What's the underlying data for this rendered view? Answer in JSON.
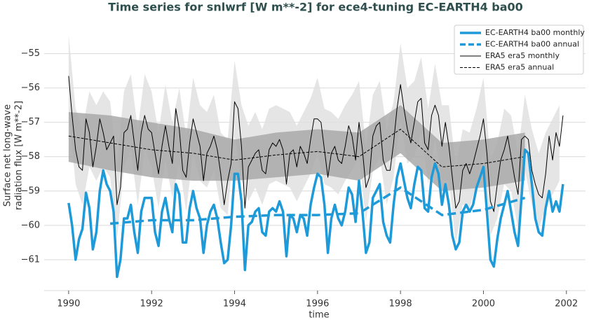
{
  "chart_data": {
    "type": "line",
    "title": "Time series for snlwrf [W m**-2] for ece4-tuning EC-EARTH4 ba00",
    "xlabel": "time",
    "ylabel": [
      "Surface net long-wave",
      "radiation flux [W m**-2]"
    ],
    "xlim": [
      1989.41,
      2002.46
    ],
    "ylim": [
      -61.9,
      -54.05
    ],
    "xticks": [
      1990,
      1992,
      1994,
      1996,
      1998,
      2000,
      2002
    ],
    "yticks": [
      {
        "value": -61,
        "label": "−61"
      },
      {
        "value": -60,
        "label": "−60"
      },
      {
        "value": -59,
        "label": "−59"
      },
      {
        "value": -58,
        "label": "−58"
      },
      {
        "value": -57,
        "label": "−57"
      },
      {
        "value": -56,
        "label": "−56"
      },
      {
        "value": -55,
        "label": "−55"
      }
    ],
    "grid": true,
    "legend": "upper right",
    "bands": [
      {
        "color": "#e0e0e0",
        "x": [
          1990,
          1990.167,
          1990.333,
          1990.5,
          1990.667,
          1990.833,
          1991,
          1991.167,
          1991.333,
          1991.5,
          1991.667,
          1991.833,
          1992,
          1992.167,
          1992.333,
          1992.5,
          1992.667,
          1992.833,
          1993,
          1993.167,
          1993.333,
          1993.5,
          1993.667,
          1993.833,
          1994,
          1994.167,
          1994.333,
          1994.5,
          1994.667,
          1994.833,
          1995,
          1995.167,
          1995.333,
          1995.5,
          1995.667,
          1995.833,
          1996,
          1996.167,
          1996.333,
          1996.5,
          1996.667,
          1996.833,
          1997,
          1997.167,
          1997.333,
          1997.5,
          1997.667,
          1997.833,
          1998,
          1998.167,
          1998.333,
          1998.5,
          1998.667,
          1998.833,
          1999,
          1999.167,
          1999.333,
          1999.5,
          1999.667,
          1999.833,
          2000,
          2000.167,
          2000.333,
          2000.5,
          2000.667,
          2000.833,
          2001,
          2001.167,
          2001.333,
          2001.5,
          2001.667,
          2001.833
        ],
        "upper": [
          -54.45,
          -56.6,
          -57.2,
          -56.1,
          -56.5,
          -56.1,
          -56.4,
          -58.2,
          -56.1,
          -55.6,
          -57.2,
          -55.6,
          -56.1,
          -57.3,
          -55.9,
          -57.0,
          -56.0,
          -57.4,
          -55.7,
          -56.5,
          -56.7,
          -56.2,
          -57.3,
          -57.5,
          -55.2,
          -56.5,
          -57.1,
          -56.7,
          -57.2,
          -56.6,
          -56.5,
          -56.6,
          -56.7,
          -57.1,
          -56.7,
          -56.3,
          -55.7,
          -56.6,
          -56.7,
          -56.9,
          -56.5,
          -56.2,
          -55.8,
          -57.7,
          -56.2,
          -55.8,
          -57.2,
          -56.4,
          -54.7,
          -56.0,
          -55.8,
          -55.1,
          -56.6,
          -55.3,
          -56.5,
          -56.5,
          -58.3,
          -57.2,
          -57.3,
          -56.6,
          -55.7,
          -58.1,
          -57.6,
          -56.6,
          -56.8,
          -57.9,
          -56.2,
          -57.2,
          -57.9,
          -57.3,
          -56.9,
          -56.5
        ],
        "lower": [
          -56.65,
          -58.8,
          -59.4,
          -58.3,
          -58.7,
          -58.3,
          -58.6,
          -60.4,
          -58.3,
          -57.8,
          -59.4,
          -57.8,
          -58.3,
          -59.5,
          -58.1,
          -59.2,
          -58.2,
          -59.6,
          -57.9,
          -58.7,
          -58.9,
          -58.4,
          -59.5,
          -59.7,
          -57.4,
          -58.7,
          -59.3,
          -58.9,
          -59.4,
          -58.8,
          -58.7,
          -58.8,
          -58.9,
          -59.3,
          -58.9,
          -58.5,
          -57.9,
          -58.8,
          -58.9,
          -59.1,
          -58.7,
          -58.4,
          -58.0,
          -59.9,
          -58.4,
          -58.0,
          -59.4,
          -58.6,
          -56.9,
          -58.2,
          -58.0,
          -57.3,
          -58.8,
          -57.5,
          -58.7,
          -58.7,
          -60.5,
          -59.4,
          -59.5,
          -58.8,
          -57.9,
          -60.3,
          -59.8,
          -58.8,
          -59.0,
          -60.1,
          -58.4,
          -59.4,
          -60.1,
          -59.5,
          -59.1,
          -58.7
        ]
      },
      {
        "color": "#a9a9a9",
        "x": [
          1990,
          1991,
          1992,
          1993,
          1994,
          1995,
          1996,
          1997,
          1998,
          1999,
          2000,
          2001
        ],
        "upper": [
          -56.7,
          -56.8,
          -57.0,
          -57.2,
          -57.5,
          -57.3,
          -57.2,
          -57.3,
          -56.5,
          -57.6,
          -57.5,
          -57.3
        ],
        "lower": [
          -58.15,
          -58.4,
          -58.6,
          -58.7,
          -58.7,
          -58.6,
          -58.5,
          -58.7,
          -57.9,
          -59.0,
          -58.9,
          -58.7
        ]
      }
    ],
    "series": [
      {
        "name": "EC-EARTH4 ba00 monthly",
        "color": "#1f9ad8",
        "width": 3.5,
        "dashed": false,
        "x": [
          1990,
          1990.083,
          1990.167,
          1990.25,
          1990.333,
          1990.417,
          1990.5,
          1990.583,
          1990.667,
          1990.75,
          1990.833,
          1990.917,
          1991,
          1991.083,
          1991.167,
          1991.25,
          1991.333,
          1991.417,
          1991.5,
          1991.583,
          1991.667,
          1991.75,
          1991.833,
          1991.917,
          1992,
          1992.083,
          1992.167,
          1992.25,
          1992.333,
          1992.417,
          1992.5,
          1992.583,
          1992.667,
          1992.75,
          1992.833,
          1992.917,
          1993,
          1993.083,
          1993.167,
          1993.25,
          1993.333,
          1993.417,
          1993.5,
          1993.583,
          1993.667,
          1993.75,
          1993.833,
          1993.917,
          1994,
          1994.083,
          1994.167,
          1994.25,
          1994.333,
          1994.417,
          1994.5,
          1994.583,
          1994.667,
          1994.75,
          1994.833,
          1994.917,
          1995,
          1995.083,
          1995.167,
          1995.25,
          1995.333,
          1995.417,
          1995.5,
          1995.583,
          1995.667,
          1995.75,
          1995.833,
          1995.917,
          1996,
          1996.083,
          1996.167,
          1996.25,
          1996.333,
          1996.417,
          1996.5,
          1996.583,
          1996.667,
          1996.75,
          1996.833,
          1996.917,
          1997,
          1997.083,
          1997.167,
          1997.25,
          1997.333,
          1997.417,
          1997.5,
          1997.583,
          1997.667,
          1997.75,
          1997.833,
          1997.917,
          1998,
          1998.083,
          1998.167,
          1998.25,
          1998.333,
          1998.417,
          1998.5,
          1998.583,
          1998.667,
          1998.75,
          1998.833,
          1998.917,
          1999,
          1999.083,
          1999.167,
          1999.25,
          1999.333,
          1999.417,
          1999.5,
          1999.583,
          1999.667,
          1999.75,
          1999.833,
          1999.917,
          2000,
          2000.083,
          2000.167,
          2000.25,
          2000.333,
          2000.417,
          2000.5,
          2000.583,
          2000.667,
          2000.75,
          2000.833,
          2000.917,
          2001,
          2001.083,
          2001.167,
          2001.25,
          2001.333,
          2001.417,
          2001.5,
          2001.583,
          2001.667,
          2001.75,
          2001.833,
          2001.917
        ],
        "values": [
          -59.35,
          -60.0,
          -61.0,
          -60.4,
          -60.1,
          -59.05,
          -59.5,
          -60.7,
          -60.2,
          -59.0,
          -58.4,
          -58.8,
          -59.0,
          -59.6,
          -61.5,
          -61.0,
          -59.8,
          -59.8,
          -59.4,
          -60.2,
          -60.8,
          -59.6,
          -59.2,
          -59.2,
          -59.2,
          -60.2,
          -60.6,
          -59.6,
          -59.2,
          -59.8,
          -60.2,
          -58.8,
          -59.1,
          -60.5,
          -60.5,
          -59.5,
          -59.0,
          -59.5,
          -59.8,
          -60.8,
          -60.0,
          -59.6,
          -59.4,
          -59.8,
          -60.5,
          -61.1,
          -61.0,
          -60.0,
          -58.5,
          -58.5,
          -59.3,
          -61.3,
          -60.0,
          -59.9,
          -59.6,
          -59.5,
          -60.2,
          -60.3,
          -59.6,
          -59.5,
          -59.6,
          -59.3,
          -59.6,
          -60.9,
          -59.7,
          -59.8,
          -60.2,
          -59.7,
          -59.8,
          -60.3,
          -59.4,
          -58.9,
          -58.5,
          -58.6,
          -59.4,
          -60.8,
          -59.8,
          -59.4,
          -59.8,
          -60.0,
          -59.6,
          -58.9,
          -59.1,
          -59.9,
          -58.7,
          -59.6,
          -60.8,
          -60.5,
          -59.2,
          -59.0,
          -58.8,
          -59.9,
          -60.3,
          -60.5,
          -59.4,
          -58.6,
          -58.2,
          -58.7,
          -59.2,
          -59.5,
          -58.8,
          -58.3,
          -58.4,
          -59.5,
          -59.6,
          -58.6,
          -58.2,
          -58.5,
          -59.4,
          -58.8,
          -59.4,
          -60.3,
          -60.7,
          -60.5,
          -59.6,
          -59.4,
          -59.6,
          -59.4,
          -58.9,
          -58.6,
          -58.3,
          -59.6,
          -61.0,
          -61.2,
          -60.4,
          -59.8,
          -59.4,
          -59.0,
          -59.6,
          -60.2,
          -60.6,
          -59.2,
          -57.8,
          -57.9,
          -58.8,
          -59.8,
          -60.2,
          -60.3,
          -59.5,
          -59.0,
          -59.6,
          -59.3,
          -59.6,
          -58.8
        ]
      },
      {
        "name": "EC-EARTH4 ba00 annual",
        "color": "#1f9ad8",
        "width": 3.5,
        "dashed": true,
        "x": [
          1991,
          1992,
          1993,
          1994,
          1995,
          1996,
          1997,
          1998,
          1999,
          2000,
          2001
        ],
        "values": [
          -59.95,
          -59.85,
          -59.85,
          -59.75,
          -59.7,
          -59.7,
          -59.65,
          -58.9,
          -59.7,
          -59.55,
          -59.2
        ]
      },
      {
        "name": "ERA5 era5 monthly",
        "color": "#000000",
        "width": 1,
        "dashed": false,
        "x": [
          1990,
          1990.083,
          1990.167,
          1990.25,
          1990.333,
          1990.417,
          1990.5,
          1990.583,
          1990.667,
          1990.75,
          1990.833,
          1990.917,
          1991,
          1991.083,
          1991.167,
          1991.25,
          1991.333,
          1991.417,
          1991.5,
          1991.583,
          1991.667,
          1991.75,
          1991.833,
          1991.917,
          1992,
          1992.083,
          1992.167,
          1992.25,
          1992.333,
          1992.417,
          1992.5,
          1992.583,
          1992.667,
          1992.75,
          1992.833,
          1992.917,
          1993,
          1993.083,
          1993.167,
          1993.25,
          1993.333,
          1993.417,
          1993.5,
          1993.583,
          1993.667,
          1993.75,
          1993.833,
          1993.917,
          1994,
          1994.083,
          1994.167,
          1994.25,
          1994.333,
          1994.417,
          1994.5,
          1994.583,
          1994.667,
          1994.75,
          1994.833,
          1994.917,
          1995,
          1995.083,
          1995.167,
          1995.25,
          1995.333,
          1995.417,
          1995.5,
          1995.583,
          1995.667,
          1995.75,
          1995.833,
          1995.917,
          1996,
          1996.083,
          1996.167,
          1996.25,
          1996.333,
          1996.417,
          1996.5,
          1996.583,
          1996.667,
          1996.75,
          1996.833,
          1996.917,
          1997,
          1997.083,
          1997.167,
          1997.25,
          1997.333,
          1997.417,
          1997.5,
          1997.583,
          1997.667,
          1997.75,
          1997.833,
          1997.917,
          1998,
          1998.083,
          1998.167,
          1998.25,
          1998.333,
          1998.417,
          1998.5,
          1998.583,
          1998.667,
          1998.75,
          1998.833,
          1998.917,
          1999,
          1999.083,
          1999.167,
          1999.25,
          1999.333,
          1999.417,
          1999.5,
          1999.583,
          1999.667,
          1999.75,
          1999.833,
          1999.917,
          2000,
          2000.083,
          2000.167,
          2000.25,
          2000.333,
          2000.417,
          2000.5,
          2000.583,
          2000.667,
          2000.75,
          2000.833,
          2000.917,
          2001,
          2001.083,
          2001.167,
          2001.25,
          2001.333,
          2001.417,
          2001.5,
          2001.583,
          2001.667,
          2001.75,
          2001.833,
          2001.917
        ],
        "values": [
          -55.65,
          -56.8,
          -57.8,
          -58.3,
          -58.4,
          -56.9,
          -57.3,
          -58.3,
          -57.7,
          -56.9,
          -57.3,
          -57.8,
          -57.6,
          -57.4,
          -59.4,
          -58.9,
          -57.3,
          -57.2,
          -56.8,
          -57.6,
          -58.4,
          -57.3,
          -56.8,
          -57.2,
          -57.3,
          -57.9,
          -58.5,
          -57.7,
          -57.1,
          -57.7,
          -58.2,
          -56.6,
          -57.2,
          -58.4,
          -58.6,
          -57.6,
          -56.9,
          -57.3,
          -57.7,
          -58.7,
          -57.9,
          -57.7,
          -57.4,
          -57.8,
          -58.5,
          -59.4,
          -58.7,
          -58.2,
          -56.4,
          -56.6,
          -57.7,
          -59.5,
          -58.3,
          -58.1,
          -57.9,
          -57.8,
          -58.4,
          -58.5,
          -57.8,
          -57.6,
          -57.7,
          -57.5,
          -57.8,
          -58.8,
          -57.9,
          -57.8,
          -58.3,
          -57.7,
          -57.9,
          -58.2,
          -57.5,
          -56.9,
          -56.9,
          -57.0,
          -57.8,
          -58.6,
          -57.9,
          -57.7,
          -58.1,
          -58.2,
          -57.7,
          -57.1,
          -57.4,
          -58.1,
          -57.0,
          -57.8,
          -58.9,
          -58.6,
          -57.4,
          -57.1,
          -57.0,
          -58.1,
          -58.4,
          -58.4,
          -57.6,
          -56.6,
          -55.9,
          -56.6,
          -57.2,
          -57.6,
          -57.0,
          -56.4,
          -56.3,
          -57.6,
          -57.8,
          -56.8,
          -56.5,
          -56.8,
          -57.7,
          -57.0,
          -57.7,
          -58.6,
          -59.5,
          -59.3,
          -58.4,
          -58.2,
          -58.5,
          -58.2,
          -57.8,
          -57.4,
          -56.9,
          -57.9,
          -59.3,
          -59.6,
          -58.8,
          -58.1,
          -57.8,
          -57.4,
          -58.0,
          -58.6,
          -59.1,
          -57.5,
          -57.4,
          -57.5,
          -58.4,
          -58.8,
          -59.1,
          -59.2,
          -58.5,
          -57.4,
          -58.1,
          -57.3,
          -57.7,
          -56.8
        ]
      },
      {
        "name": "ERA5 era5 annual",
        "color": "#000000",
        "width": 1,
        "dashed": true,
        "x": [
          1990,
          1991,
          1992,
          1993,
          1994,
          1995,
          1996,
          1997,
          1998,
          1999,
          2000,
          2001
        ],
        "values": [
          -57.4,
          -57.6,
          -57.8,
          -57.9,
          -58.1,
          -57.95,
          -57.85,
          -58.0,
          -57.2,
          -58.3,
          -58.2,
          -58.0
        ]
      }
    ]
  }
}
